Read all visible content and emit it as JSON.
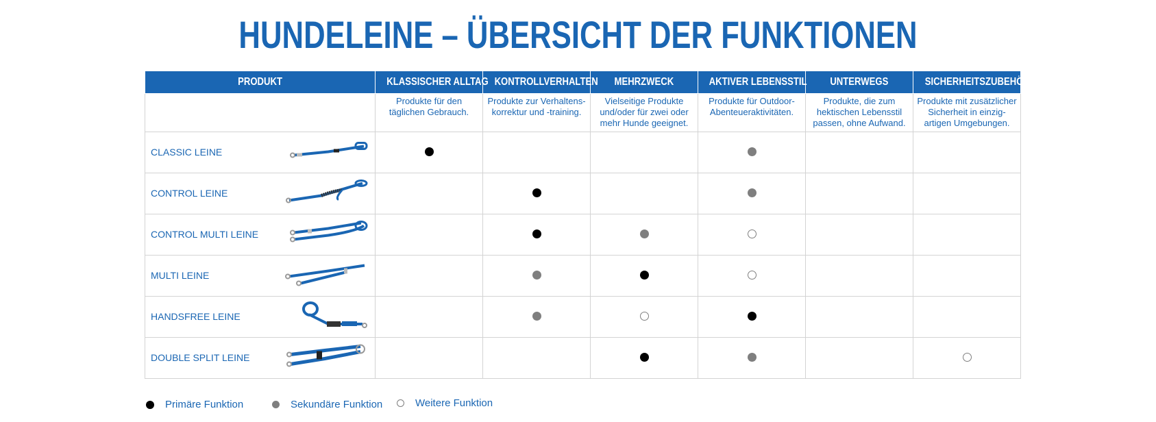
{
  "title": "HUNDELEINE – ÜBERSICHT DER FUNKTIONEN",
  "colors": {
    "brand": "#1a66b3",
    "primary_dot": "#000000",
    "secondary_dot": "#7f7f7f",
    "grid": "#d3d3d3"
  },
  "header": {
    "product_label": "PRODUKT",
    "columns": [
      {
        "label": "KLASSISCHER ALLTAG",
        "desc": "Produkte für den täglichen Gebrauch."
      },
      {
        "label": "KONTROLLVERHALTEN",
        "desc": "Produkte zur Verhaltens-korrektur und -training."
      },
      {
        "label": "MEHRZWECK",
        "desc": "Vielseitige Produkte und/oder für zwei oder mehr Hunde geeignet."
      },
      {
        "label": "AKTIVER LEBENSSTIL",
        "desc": "Produkte für Outdoor-Abenteueraktivitäten."
      },
      {
        "label": "UNTERWEGS",
        "desc": "Produkte, die zum hektischen Lebensstil passen, ohne Aufwand."
      },
      {
        "label": "SICHERHEITSZUBEHÖR",
        "desc": "Produkte mit zusätzlicher Sicherheit in einzig-artigen Umgebungen."
      }
    ]
  },
  "rows": [
    {
      "name": "CLASSIC LEINE",
      "image": "classic-leash-image",
      "marks": [
        "primary",
        "",
        "",
        "secondary",
        "",
        ""
      ]
    },
    {
      "name": "CONTROL LEINE",
      "image": "control-leash-image",
      "marks": [
        "",
        "primary",
        "",
        "secondary",
        "",
        ""
      ]
    },
    {
      "name": "CONTROL MULTI LEINE",
      "image": "control-multi-leash-image",
      "marks": [
        "",
        "primary",
        "secondary",
        "other",
        "",
        ""
      ]
    },
    {
      "name": "MULTI LEINE",
      "image": "multi-leash-image",
      "marks": [
        "",
        "secondary",
        "primary",
        "other",
        "",
        ""
      ]
    },
    {
      "name": "HANDSFREE LEINE",
      "image": "handsfree-leash-image",
      "marks": [
        "",
        "secondary",
        "other",
        "primary",
        "",
        ""
      ]
    },
    {
      "name": "DOUBLE SPLIT LEINE",
      "image": "double-split-leash-image",
      "marks": [
        "",
        "",
        "primary",
        "secondary",
        "",
        "other"
      ]
    }
  ],
  "legend": {
    "primary": "Primäre Funktion",
    "secondary": "Sekundäre Funktion",
    "other": "Weitere Funktion"
  }
}
